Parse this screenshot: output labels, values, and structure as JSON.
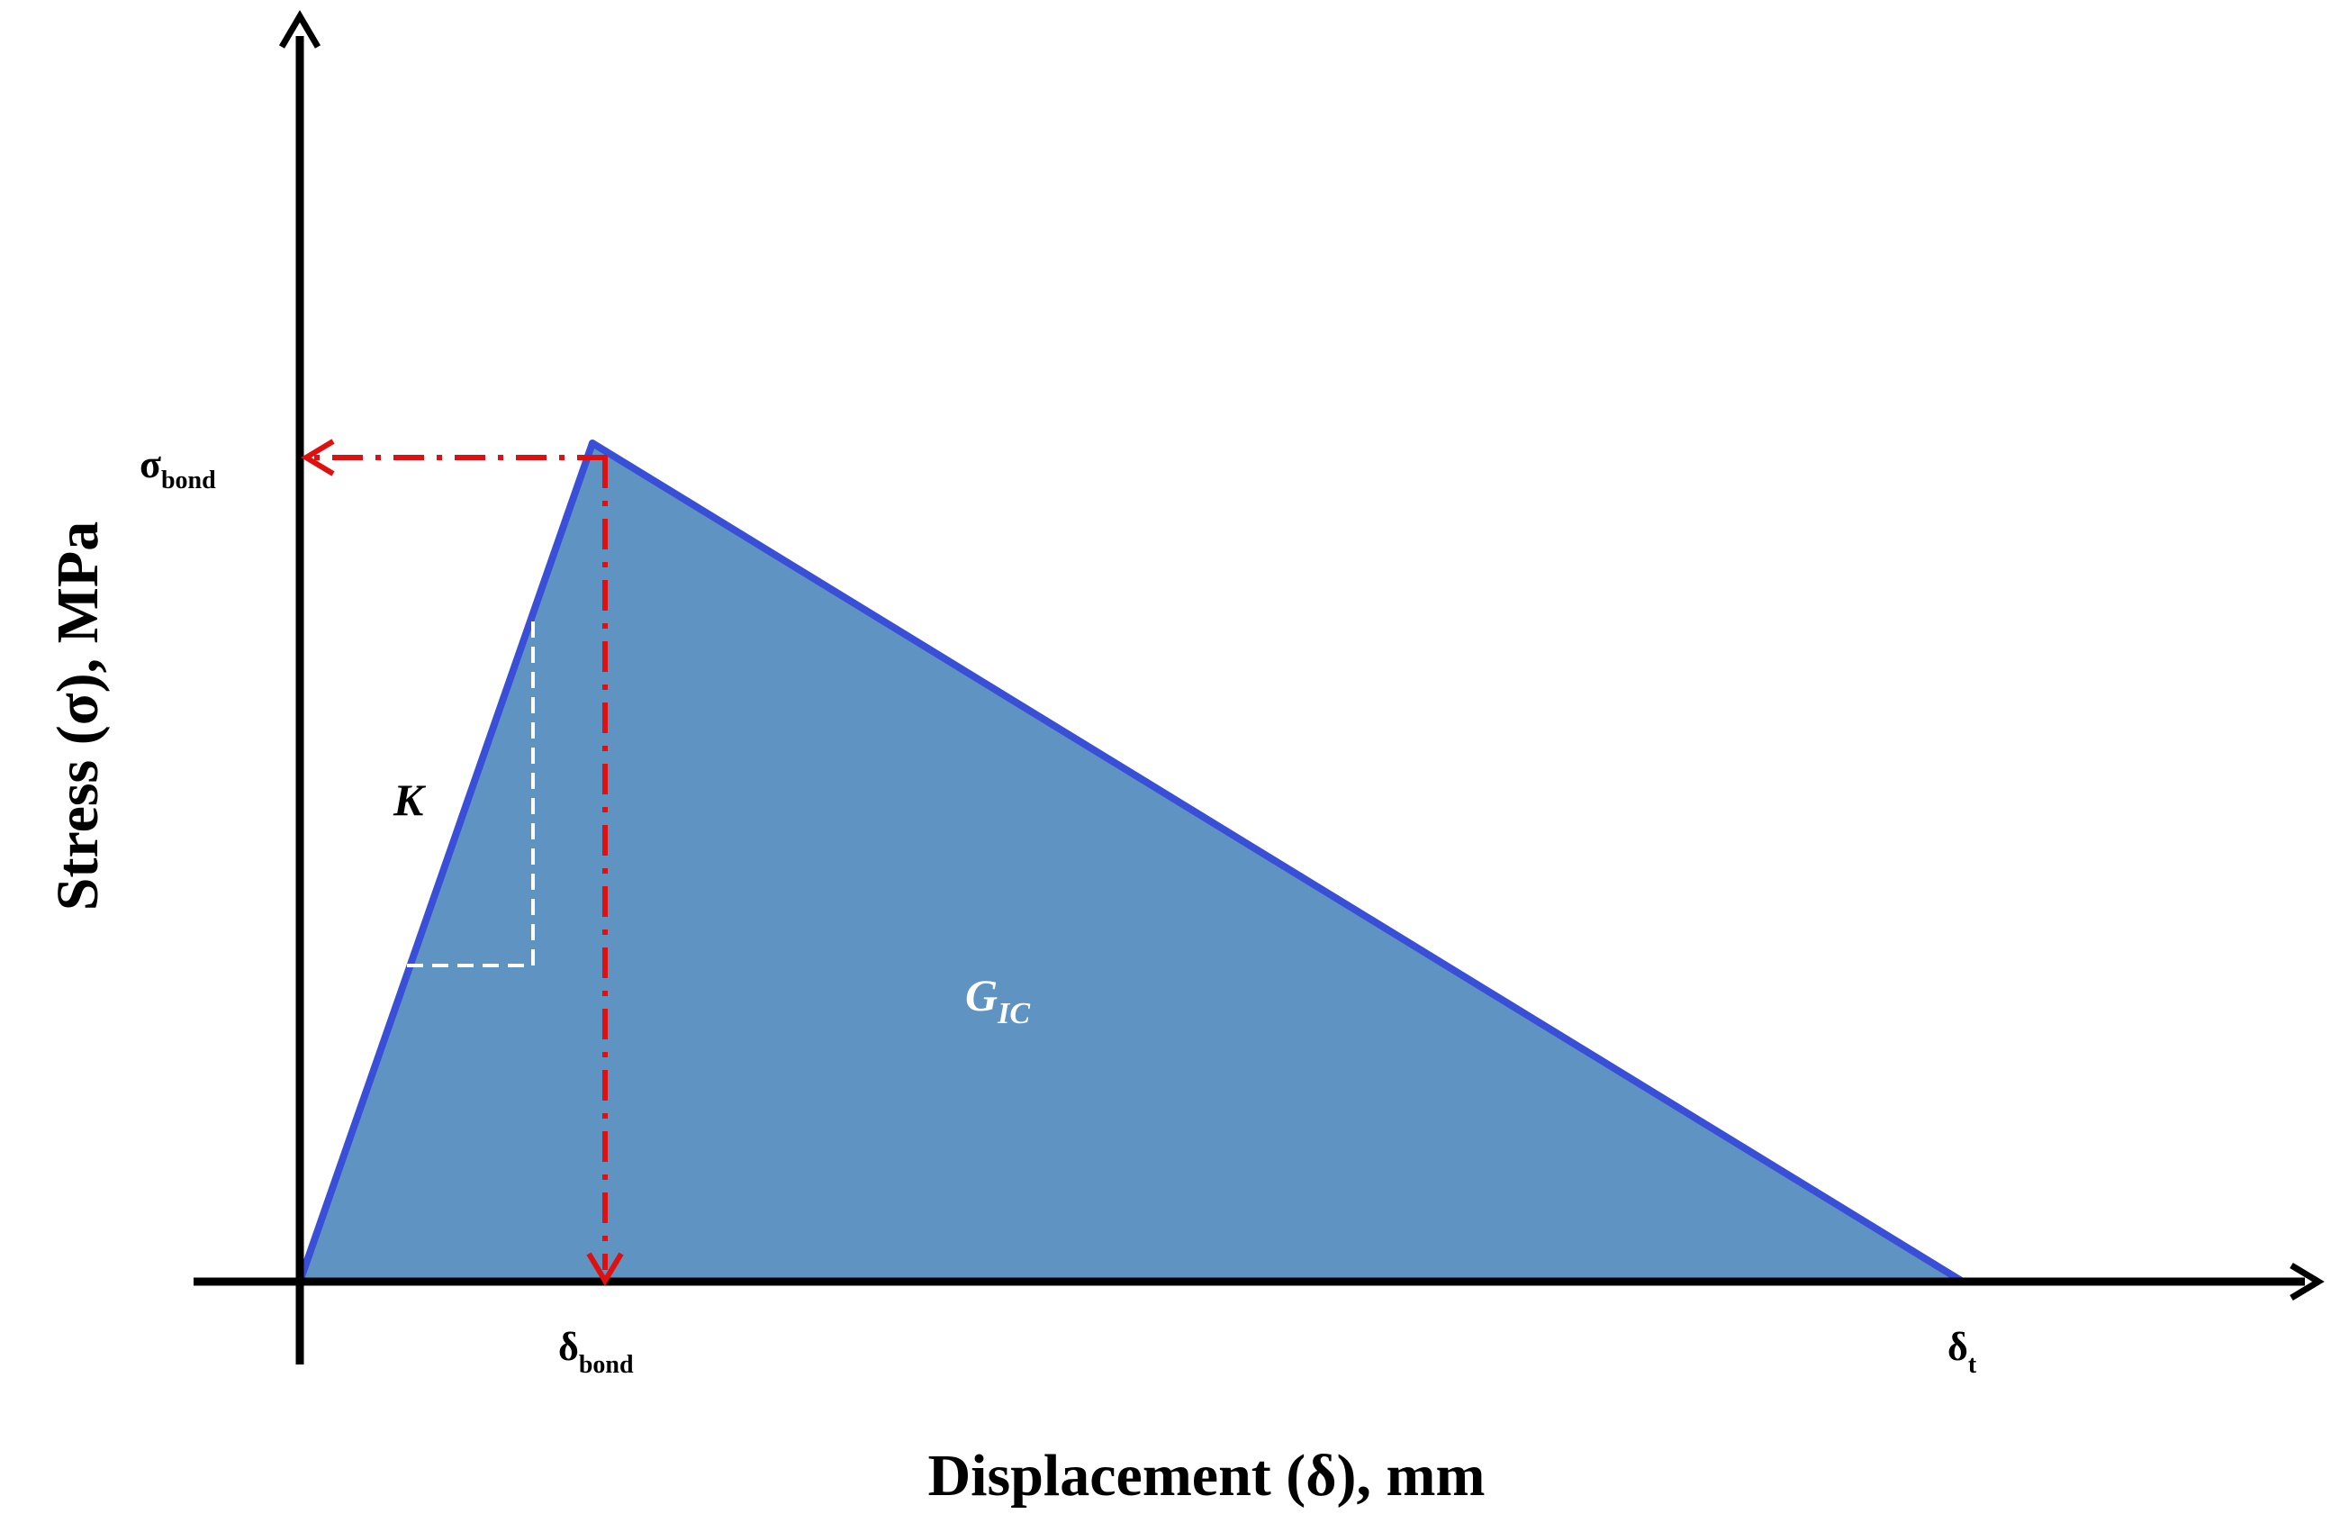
{
  "diagram": {
    "x_axis_label": "Displacement (δ), mm",
    "y_axis_label": "Stress (σ), MPa",
    "peak_stress_label": {
      "main": "σ",
      "sub": "bond"
    },
    "peak_displacement_label": {
      "main": "δ",
      "sub": "bond"
    },
    "failure_displacement_label": {
      "main": "δ",
      "sub": "t"
    },
    "stiffness_label": "K",
    "area_label": {
      "main": "G",
      "sub": "IC"
    },
    "colors": {
      "fill": "#5f93c2",
      "curve": "#3a4fd8",
      "guide": "#e01010",
      "axes": "#000000",
      "slope_marker": "#ffffff"
    }
  },
  "chart_data": {
    "type": "area",
    "shape": "bilinear traction-separation law",
    "points": [
      {
        "x": "0",
        "y": "0"
      },
      {
        "x": "δbond",
        "y": "σbond"
      },
      {
        "x": "δt",
        "y": "0"
      }
    ],
    "xlabel": "Displacement (δ), mm",
    "ylabel": "Stress (σ), MPa",
    "grid": false
  }
}
